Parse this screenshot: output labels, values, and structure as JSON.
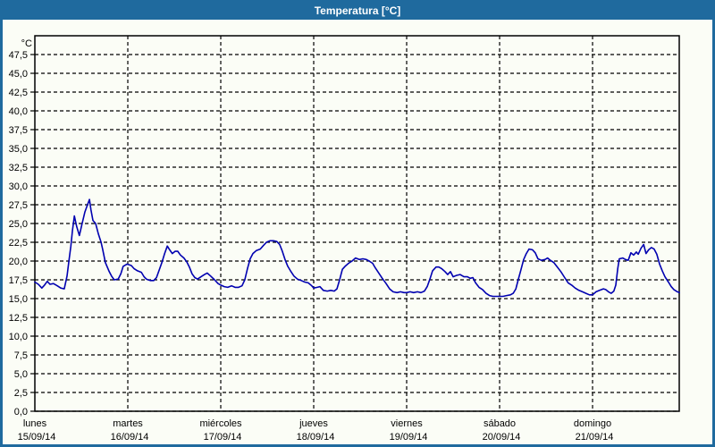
{
  "window": {
    "title": "Temperatura [°C]"
  },
  "colors": {
    "titlebar_bg": "#1f6a9e",
    "window_border": "#1f6a9e",
    "title_text": "#ffffff",
    "background": "#fbfdf6",
    "frame": "#000000",
    "grid": "#000000",
    "label_text": "#000000",
    "line": "#0000b0"
  },
  "chart_data": {
    "type": "line",
    "title": "Temperatura [°C]",
    "y_unit_label": "°C",
    "y_min": 0,
    "y_max": 50,
    "y_tick_step": 2.5,
    "grid": "dashed",
    "legend_position": "none",
    "y_ticks": [
      [
        47.5,
        "47,5"
      ],
      [
        45.0,
        "45,0"
      ],
      [
        42.5,
        "42,5"
      ],
      [
        40.0,
        "40,0"
      ],
      [
        37.5,
        "37,5"
      ],
      [
        35.0,
        "35,0"
      ],
      [
        32.5,
        "32,5"
      ],
      [
        30.0,
        "30,0"
      ],
      [
        27.5,
        "27,5"
      ],
      [
        25.0,
        "25,0"
      ],
      [
        22.5,
        "22,5"
      ],
      [
        20.0,
        "20,0"
      ],
      [
        17.5,
        "17,5"
      ],
      [
        15.0,
        "15,0"
      ],
      [
        12.5,
        "12,5"
      ],
      [
        10.0,
        "10,0"
      ],
      [
        7.5,
        "7,5"
      ],
      [
        5.0,
        "5,0"
      ],
      [
        2.5,
        "2,5"
      ],
      [
        0.0,
        "0,0"
      ]
    ],
    "x_days": [
      {
        "name": "lunes",
        "date": "15/09/14"
      },
      {
        "name": "martes",
        "date": "16/09/14"
      },
      {
        "name": "miércoles",
        "date": "17/09/14"
      },
      {
        "name": "jueves",
        "date": "18/09/14"
      },
      {
        "name": "viernes",
        "date": "19/09/14"
      },
      {
        "name": "sábado",
        "date": "20/09/14"
      },
      {
        "name": "domingo",
        "date": "21/09/14"
      }
    ],
    "hours_per_day": 24,
    "x_total_hours": 166.4,
    "series": [
      {
        "name": "Temperatura",
        "points": [
          [
            0,
            17.2
          ],
          [
            0.9,
            16.9
          ],
          [
            1.8,
            16.4
          ],
          [
            2.5,
            16.8
          ],
          [
            3.2,
            17.3
          ],
          [
            3.9,
            16.9
          ],
          [
            4.8,
            17.0
          ],
          [
            5.8,
            16.7
          ],
          [
            6.7,
            16.4
          ],
          [
            7.6,
            16.3
          ],
          [
            8.3,
            18.0
          ],
          [
            8.8,
            20.0
          ],
          [
            9.3,
            22.0
          ],
          [
            9.7,
            24.0
          ],
          [
            10.2,
            26.0
          ],
          [
            10.8,
            24.6
          ],
          [
            11.5,
            23.4
          ],
          [
            12.2,
            25.0
          ],
          [
            12.9,
            26.5
          ],
          [
            13.6,
            27.5
          ],
          [
            14.1,
            28.2
          ],
          [
            14.5,
            26.8
          ],
          [
            15.0,
            25.4
          ],
          [
            15.7,
            25.0
          ],
          [
            16.4,
            23.6
          ],
          [
            17.1,
            22.5
          ],
          [
            17.5,
            21.6
          ],
          [
            18.2,
            19.8
          ],
          [
            19.2,
            18.6
          ],
          [
            19.8,
            18.0
          ],
          [
            20.5,
            17.5
          ],
          [
            21.5,
            17.6
          ],
          [
            22.2,
            18.3
          ],
          [
            22.8,
            19.3
          ],
          [
            23.8,
            19.6
          ],
          [
            24.9,
            19.4
          ],
          [
            25.6,
            19.0
          ],
          [
            26.5,
            18.7
          ],
          [
            27.5,
            18.5
          ],
          [
            28.2,
            17.9
          ],
          [
            28.8,
            17.6
          ],
          [
            29.8,
            17.4
          ],
          [
            30.7,
            17.4
          ],
          [
            31.4,
            17.8
          ],
          [
            32.1,
            18.8
          ],
          [
            32.8,
            19.8
          ],
          [
            33.5,
            21.0
          ],
          [
            34.2,
            22.0
          ],
          [
            34.8,
            21.5
          ],
          [
            35.5,
            21.0
          ],
          [
            36.2,
            21.3
          ],
          [
            36.9,
            21.3
          ],
          [
            37.6,
            20.8
          ],
          [
            38.5,
            20.4
          ],
          [
            39.2,
            19.9
          ],
          [
            39.9,
            19.2
          ],
          [
            40.6,
            18.3
          ],
          [
            41.3,
            17.8
          ],
          [
            42.0,
            17.6
          ],
          [
            42.9,
            17.9
          ],
          [
            43.8,
            18.2
          ],
          [
            44.5,
            18.4
          ],
          [
            45.4,
            18.0
          ],
          [
            46.4,
            17.5
          ],
          [
            47.3,
            17.0
          ],
          [
            48.0,
            16.8
          ],
          [
            48.9,
            16.6
          ],
          [
            49.8,
            16.5
          ],
          [
            50.8,
            16.7
          ],
          [
            51.7,
            16.5
          ],
          [
            52.6,
            16.5
          ],
          [
            53.5,
            16.7
          ],
          [
            54.2,
            17.5
          ],
          [
            54.9,
            19.0
          ],
          [
            55.6,
            20.3
          ],
          [
            56.3,
            21.0
          ],
          [
            57.2,
            21.4
          ],
          [
            58.2,
            21.6
          ],
          [
            58.9,
            22.0
          ],
          [
            59.8,
            22.5
          ],
          [
            60.7,
            22.7
          ],
          [
            61.6,
            22.7
          ],
          [
            62.5,
            22.6
          ],
          [
            63.2,
            22.2
          ],
          [
            63.9,
            21.3
          ],
          [
            64.6,
            20.2
          ],
          [
            65.3,
            19.3
          ],
          [
            66.0,
            18.7
          ],
          [
            66.9,
            18.0
          ],
          [
            67.8,
            17.6
          ],
          [
            68.8,
            17.4
          ],
          [
            69.7,
            17.2
          ],
          [
            70.6,
            17.1
          ],
          [
            71.5,
            16.7
          ],
          [
            72.0,
            16.4
          ],
          [
            72.9,
            16.5
          ],
          [
            73.6,
            16.6
          ],
          [
            74.5,
            16.1
          ],
          [
            75.5,
            16.0
          ],
          [
            76.4,
            16.1
          ],
          [
            77.3,
            16.0
          ],
          [
            78.0,
            16.3
          ],
          [
            78.7,
            17.5
          ],
          [
            79.4,
            18.9
          ],
          [
            80.1,
            19.3
          ],
          [
            81.0,
            19.7
          ],
          [
            81.9,
            20.0
          ],
          [
            82.8,
            20.4
          ],
          [
            83.8,
            20.2
          ],
          [
            84.7,
            20.3
          ],
          [
            85.6,
            20.2
          ],
          [
            86.3,
            20.0
          ],
          [
            87.2,
            19.7
          ],
          [
            87.9,
            19.1
          ],
          [
            88.8,
            18.4
          ],
          [
            89.7,
            17.7
          ],
          [
            90.7,
            17.0
          ],
          [
            91.6,
            16.3
          ],
          [
            92.5,
            15.9
          ],
          [
            93.5,
            15.8
          ],
          [
            94.4,
            15.9
          ],
          [
            95.3,
            15.8
          ],
          [
            96.0,
            15.8
          ],
          [
            96.9,
            15.9
          ],
          [
            97.8,
            15.8
          ],
          [
            98.8,
            15.9
          ],
          [
            99.7,
            15.8
          ],
          [
            100.6,
            16.0
          ],
          [
            101.3,
            16.6
          ],
          [
            102.0,
            17.6
          ],
          [
            102.7,
            18.7
          ],
          [
            103.6,
            19.2
          ],
          [
            104.3,
            19.2
          ],
          [
            105.0,
            19.0
          ],
          [
            105.9,
            18.6
          ],
          [
            106.6,
            18.2
          ],
          [
            107.3,
            18.6
          ],
          [
            108.0,
            17.9
          ],
          [
            108.9,
            18.1
          ],
          [
            109.8,
            18.2
          ],
          [
            110.8,
            17.9
          ],
          [
            111.7,
            17.9
          ],
          [
            112.4,
            17.7
          ],
          [
            113.1,
            17.8
          ],
          [
            113.8,
            17.1
          ],
          [
            114.7,
            16.5
          ],
          [
            115.6,
            16.2
          ],
          [
            116.5,
            15.7
          ],
          [
            117.4,
            15.4
          ],
          [
            118.3,
            15.3
          ],
          [
            119.3,
            15.3
          ],
          [
            120.0,
            15.3
          ],
          [
            120.9,
            15.3
          ],
          [
            121.8,
            15.4
          ],
          [
            122.8,
            15.5
          ],
          [
            123.5,
            15.7
          ],
          [
            124.2,
            16.3
          ],
          [
            124.8,
            17.5
          ],
          [
            125.5,
            18.8
          ],
          [
            126.2,
            20.2
          ],
          [
            126.9,
            21.0
          ],
          [
            127.6,
            21.6
          ],
          [
            128.5,
            21.5
          ],
          [
            129.2,
            21.1
          ],
          [
            129.9,
            20.3
          ],
          [
            130.8,
            20.1
          ],
          [
            131.7,
            20.2
          ],
          [
            132.4,
            20.4
          ],
          [
            133.1,
            20.1
          ],
          [
            134.0,
            19.8
          ],
          [
            134.9,
            19.2
          ],
          [
            135.8,
            18.6
          ],
          [
            136.8,
            17.8
          ],
          [
            137.7,
            17.1
          ],
          [
            138.6,
            16.8
          ],
          [
            139.5,
            16.4
          ],
          [
            140.5,
            16.1
          ],
          [
            141.4,
            15.9
          ],
          [
            142.3,
            15.7
          ],
          [
            143.2,
            15.5
          ],
          [
            144.0,
            15.5
          ],
          [
            144.9,
            15.9
          ],
          [
            145.8,
            16.1
          ],
          [
            146.8,
            16.3
          ],
          [
            147.4,
            16.2
          ],
          [
            148.1,
            15.9
          ],
          [
            148.8,
            15.7
          ],
          [
            149.5,
            16.0
          ],
          [
            150.0,
            16.8
          ],
          [
            150.5,
            19.0
          ],
          [
            150.9,
            20.3
          ],
          [
            151.8,
            20.4
          ],
          [
            152.5,
            20.2
          ],
          [
            153.2,
            20.1
          ],
          [
            153.9,
            21.1
          ],
          [
            154.6,
            20.8
          ],
          [
            155.3,
            21.2
          ],
          [
            155.8,
            20.9
          ],
          [
            156.5,
            21.7
          ],
          [
            157.2,
            22.2
          ],
          [
            157.8,
            21.0
          ],
          [
            158.5,
            21.5
          ],
          [
            159.2,
            21.8
          ],
          [
            159.9,
            21.6
          ],
          [
            160.6,
            20.9
          ],
          [
            161.3,
            19.6
          ],
          [
            162.0,
            18.7
          ],
          [
            162.7,
            17.9
          ],
          [
            163.6,
            17.2
          ],
          [
            164.3,
            16.6
          ],
          [
            165.0,
            16.2
          ],
          [
            165.9,
            15.9
          ],
          [
            166.4,
            15.8
          ]
        ]
      }
    ]
  }
}
